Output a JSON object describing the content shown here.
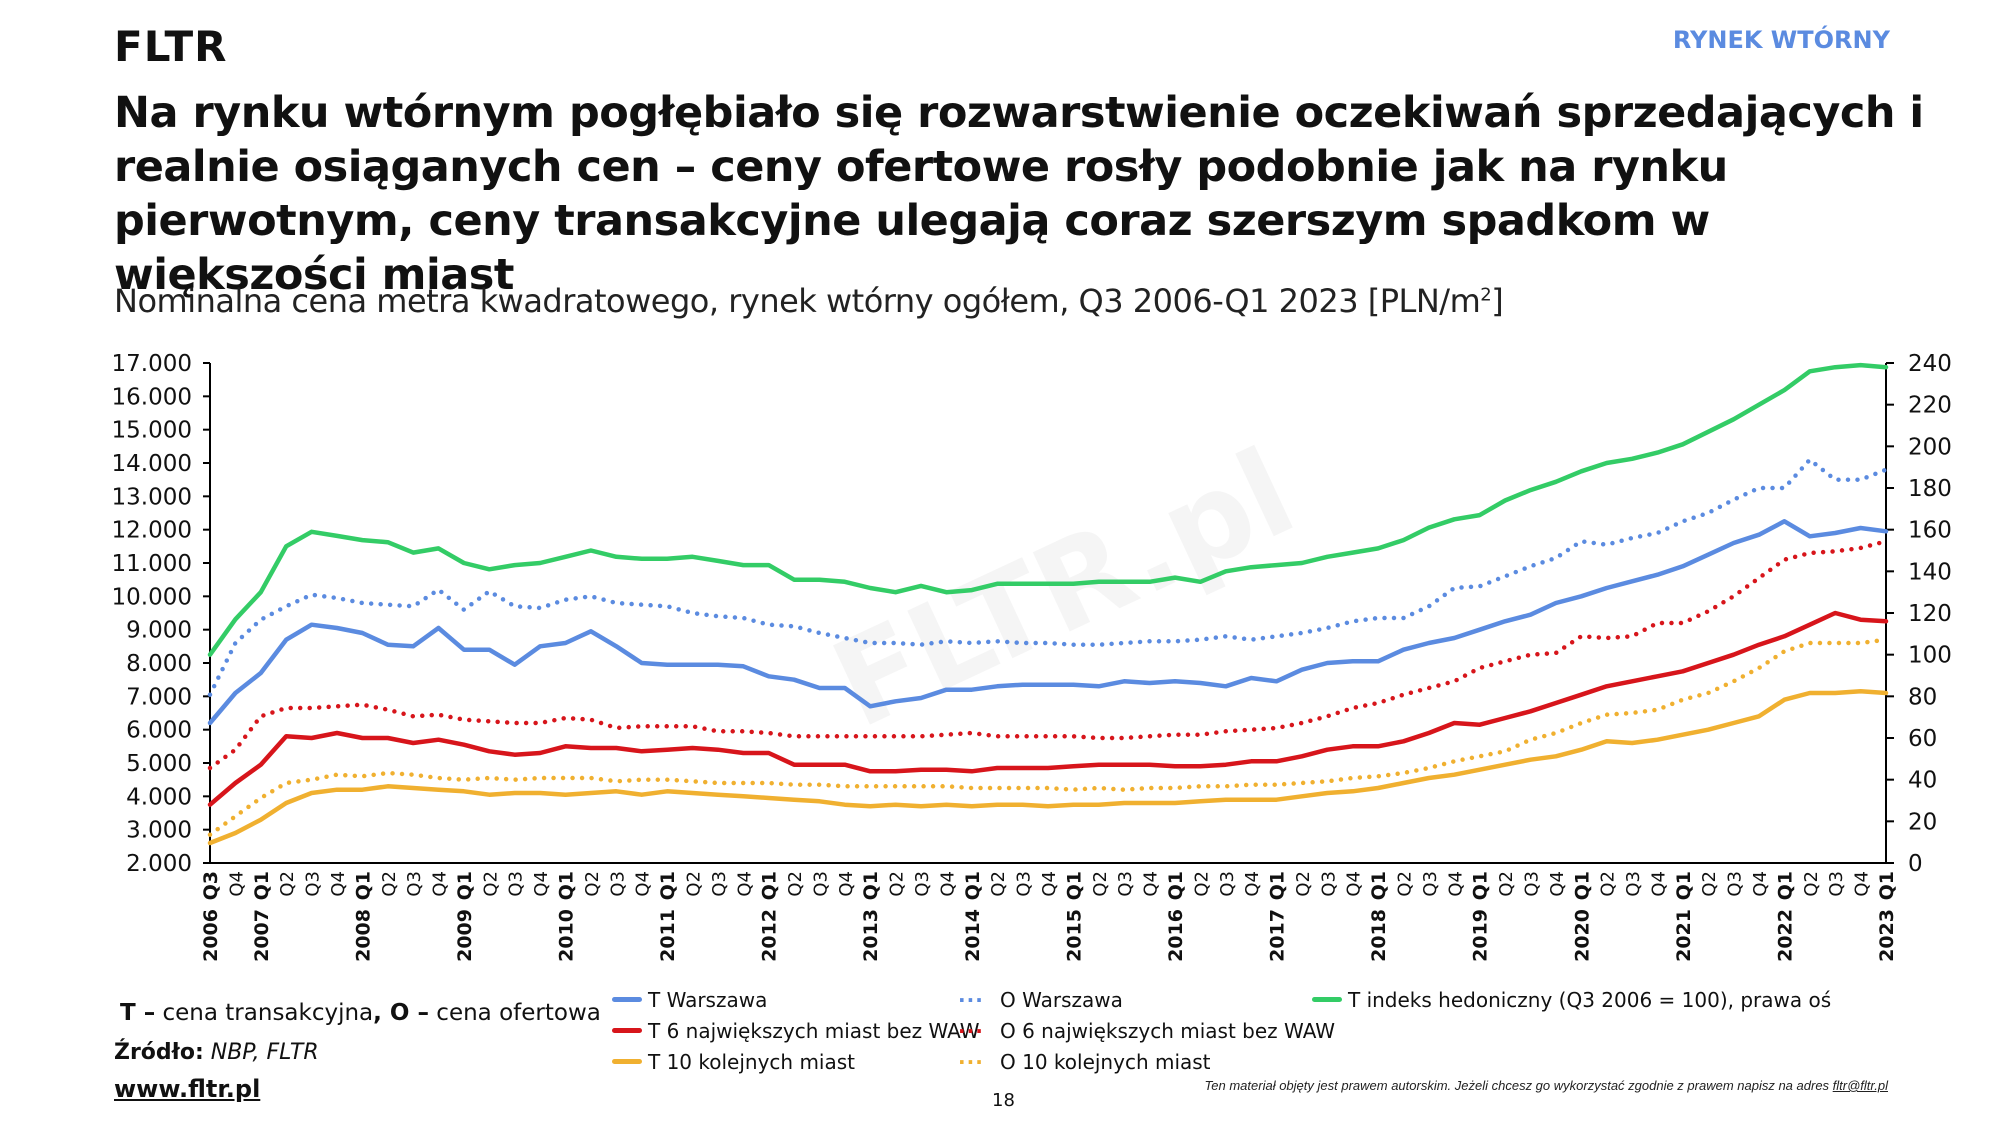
{
  "header": {
    "brand": "FLTR",
    "section": "RYNEK WTÓRNY",
    "headline": "Na rynku wtórnym pogłębiało się rozwarstwienie oczekiwań sprzedających i realnie osiąganych cen – ceny ofertowe rosły podobnie jak na rynku pierwotnym, ceny transakcyjne ulegają coraz szerszym spadkom w większości miast",
    "subtitle": "Nominalna cena metra kwadratowego, rynek wtórny ogółem, Q3 2006-Q1 2023 [PLN/m",
    "subtitle_sup": "2",
    "subtitle_end": "]"
  },
  "watermark": "FLTR.pl",
  "footer": {
    "note_t": "T –",
    "note_t_text": " cena transakcyjna",
    "note_comma": ",",
    "note_o": " O –",
    "note_o_text": " cena ofertowa",
    "source_label": "Źródło:",
    "source_value": " NBP, FLTR",
    "url": "www.fltr.pl",
    "page_number": "18",
    "copyright": "Ten materiał objęty jest prawem autorskim. Jeżeli chcesz go wykorzystać zgodnie z prawem napisz na adres ",
    "copyright_mail": "fltr@fltr.pl"
  },
  "colors": {
    "blue": "#5b8be0",
    "red": "#d7151b",
    "orange": "#f0b030",
    "green": "#33cc66",
    "section": "#5b8be0"
  },
  "chart_data": {
    "type": "line",
    "title": "Nominalna cena metra kwadratowego, rynek wtórny ogółem, Q3 2006-Q1 2023 [PLN/m2]",
    "xlabel": "",
    "ylabel": "PLN/m2",
    "ylabel_right": "indeks (Q3 2006 = 100)",
    "ylim": [
      2000,
      17000
    ],
    "ylim_right": [
      0,
      240
    ],
    "yticks": [
      "2.000",
      "3.000",
      "4.000",
      "5.000",
      "6.000",
      "7.000",
      "8.000",
      "9.000",
      "10.000",
      "11.000",
      "12.000",
      "13.000",
      "14.000",
      "15.000",
      "16.000",
      "17.000"
    ],
    "yticks_right": [
      "0",
      "20",
      "40",
      "60",
      "80",
      "100",
      "120",
      "140",
      "160",
      "180",
      "200",
      "220",
      "240"
    ],
    "grid": false,
    "legend_position": "bottom",
    "x": [
      "2006 Q3",
      "Q4",
      "2007 Q1",
      "Q2",
      "Q3",
      "Q4",
      "2008 Q1",
      "Q2",
      "Q3",
      "Q4",
      "2009 Q1",
      "Q2",
      "Q3",
      "Q4",
      "2010 Q1",
      "Q2",
      "Q3",
      "Q4",
      "2011 Q1",
      "Q2",
      "Q3",
      "Q4",
      "2012 Q1",
      "Q2",
      "Q3",
      "Q4",
      "2013 Q1",
      "Q2",
      "Q3",
      "Q4",
      "2014 Q1",
      "Q2",
      "Q3",
      "Q4",
      "2015 Q1",
      "Q2",
      "Q3",
      "Q4",
      "2016 Q1",
      "Q2",
      "Q3",
      "Q4",
      "2017 Q1",
      "Q2",
      "Q3",
      "Q4",
      "2018 Q1",
      "Q2",
      "Q3",
      "Q4",
      "2019 Q1",
      "Q2",
      "Q3",
      "Q4",
      "2020 Q1",
      "Q2",
      "Q3",
      "Q4",
      "2021 Q1",
      "Q2",
      "Q3",
      "Q4",
      "2022 Q1",
      "Q2",
      "Q3",
      "Q4",
      "2023 Q1"
    ],
    "series": [
      {
        "name": "T Warszawa",
        "axis": "left",
        "style": "solid",
        "color": "#5b8be0",
        "values": [
          6200,
          7100,
          7700,
          8700,
          9150,
          9050,
          8900,
          8550,
          8500,
          9050,
          8400,
          8400,
          7950,
          8500,
          8600,
          8950,
          8500,
          8000,
          7950,
          7950,
          7950,
          7900,
          7600,
          7500,
          7250,
          7250,
          6700,
          6850,
          6950,
          7200,
          7200,
          7300,
          7350,
          7350,
          7350,
          7300,
          7450,
          7400,
          7450,
          7400,
          7300,
          7550,
          7450,
          7800,
          8000,
          8050,
          8050,
          8400,
          8600,
          8750,
          9000,
          9250,
          9450,
          9800,
          10000,
          10250,
          10450,
          10650,
          10900,
          11250,
          11600,
          11850,
          12250,
          11800,
          11900,
          12050,
          11950
        ]
      },
      {
        "name": "T 6 największych miast bez WAW",
        "axis": "left",
        "style": "solid",
        "color": "#d7151b",
        "values": [
          3750,
          4400,
          4950,
          5800,
          5750,
          5900,
          5750,
          5750,
          5600,
          5700,
          5550,
          5350,
          5250,
          5300,
          5500,
          5450,
          5450,
          5350,
          5400,
          5450,
          5400,
          5300,
          5300,
          4950,
          4950,
          4950,
          4750,
          4750,
          4800,
          4800,
          4750,
          4850,
          4850,
          4850,
          4900,
          4950,
          4950,
          4950,
          4900,
          4900,
          4950,
          5050,
          5050,
          5200,
          5400,
          5500,
          5500,
          5650,
          5900,
          6200,
          6150,
          6350,
          6550,
          6800,
          7050,
          7300,
          7450,
          7600,
          7750,
          8000,
          8250,
          8550,
          8800,
          9150,
          9500,
          9300,
          9250
        ]
      },
      {
        "name": "T 10 kolejnych miast",
        "axis": "left",
        "style": "solid",
        "color": "#f0b030",
        "values": [
          2600,
          2900,
          3300,
          3800,
          4100,
          4200,
          4200,
          4300,
          4250,
          4200,
          4150,
          4050,
          4100,
          4100,
          4050,
          4100,
          4150,
          4050,
          4150,
          4100,
          4050,
          4000,
          3950,
          3900,
          3850,
          3750,
          3700,
          3750,
          3700,
          3750,
          3700,
          3750,
          3750,
          3700,
          3750,
          3750,
          3800,
          3800,
          3800,
          3850,
          3900,
          3900,
          3900,
          4000,
          4100,
          4150,
          4250,
          4400,
          4550,
          4650,
          4800,
          4950,
          5100,
          5200,
          5400,
          5650,
          5600,
          5700,
          5850,
          6000,
          6200,
          6400,
          6900,
          7100,
          7100,
          7150,
          7100
        ]
      },
      {
        "name": "O Warszawa",
        "axis": "left",
        "style": "dotted",
        "color": "#5b8be0",
        "values": [
          7050,
          8600,
          9300,
          9700,
          10050,
          9950,
          9800,
          9750,
          9700,
          10200,
          9600,
          10150,
          9700,
          9650,
          9900,
          10000,
          9800,
          9750,
          9700,
          9500,
          9400,
          9350,
          9150,
          9100,
          8900,
          8750,
          8600,
          8600,
          8550,
          8650,
          8600,
          8650,
          8600,
          8600,
          8550,
          8550,
          8600,
          8650,
          8650,
          8700,
          8800,
          8700,
          8800,
          8900,
          9050,
          9250,
          9350,
          9350,
          9700,
          10250,
          10300,
          10600,
          10900,
          11150,
          11650,
          11550,
          11750,
          11900,
          12250,
          12500,
          12900,
          13250,
          13250,
          14100,
          13500,
          13500,
          13800
        ]
      },
      {
        "name": "O 6 największych miast bez WAW",
        "axis": "left",
        "style": "dotted",
        "color": "#d7151b",
        "values": [
          4850,
          5400,
          6400,
          6650,
          6650,
          6700,
          6750,
          6600,
          6400,
          6450,
          6300,
          6250,
          6200,
          6200,
          6350,
          6300,
          6050,
          6100,
          6100,
          6100,
          5950,
          5950,
          5900,
          5800,
          5800,
          5800,
          5800,
          5800,
          5800,
          5850,
          5900,
          5800,
          5800,
          5800,
          5800,
          5750,
          5750,
          5800,
          5850,
          5850,
          5950,
          6000,
          6050,
          6200,
          6400,
          6650,
          6800,
          7050,
          7250,
          7450,
          7850,
          8050,
          8250,
          8300,
          8800,
          8750,
          8800,
          9200,
          9200,
          9550,
          10000,
          10550,
          11100,
          11300,
          11350,
          11450,
          11650
        ]
      },
      {
        "name": "O 10 kolejnych miast",
        "axis": "left",
        "style": "dotted",
        "color": "#f0b030",
        "values": [
          2850,
          3400,
          3950,
          4400,
          4500,
          4650,
          4600,
          4700,
          4650,
          4550,
          4500,
          4550,
          4500,
          4550,
          4550,
          4550,
          4450,
          4500,
          4500,
          4450,
          4400,
          4400,
          4400,
          4350,
          4350,
          4300,
          4300,
          4300,
          4300,
          4300,
          4250,
          4250,
          4250,
          4250,
          4200,
          4250,
          4200,
          4250,
          4250,
          4300,
          4300,
          4350,
          4350,
          4400,
          4450,
          4550,
          4600,
          4700,
          4850,
          5050,
          5200,
          5350,
          5700,
          5900,
          6200,
          6450,
          6500,
          6600,
          6900,
          7100,
          7450,
          7850,
          8350,
          8600,
          8600,
          8600,
          8700
        ]
      },
      {
        "name": "T indeks hedoniczny (Q3 2006 = 100), prawa oś",
        "axis": "right",
        "style": "solid",
        "color": "#33cc66",
        "values": [
          100,
          117,
          130,
          152,
          159,
          157,
          155,
          154,
          149,
          151,
          144,
          141,
          143,
          144,
          147,
          150,
          147,
          146,
          146,
          147,
          145,
          143,
          143,
          136,
          136,
          135,
          132,
          130,
          133,
          130,
          131,
          134,
          134,
          134,
          134,
          135,
          135,
          135,
          137,
          135,
          140,
          142,
          143,
          144,
          147,
          149,
          151,
          155,
          161,
          165,
          167,
          174,
          179,
          183,
          188,
          192,
          194,
          197,
          201,
          207,
          213,
          220,
          227,
          236,
          238,
          239,
          238
        ]
      }
    ]
  }
}
